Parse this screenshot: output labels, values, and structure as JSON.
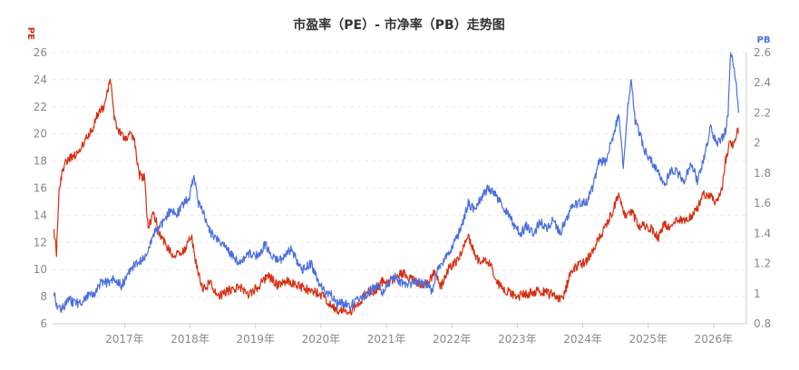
{
  "chart_data": {
    "type": "line",
    "title": "市盈率（PE）- 市净率（PB）走势图",
    "left_axis": {
      "label": "PE",
      "ylim": [
        6,
        26
      ],
      "ticks": [
        6,
        8,
        10,
        12,
        14,
        16,
        18,
        20,
        22,
        24,
        26
      ],
      "color": "#d62e12"
    },
    "right_axis": {
      "label": "PB",
      "ylim": [
        0.8,
        2.6
      ],
      "ticks": [
        "0.8",
        "1",
        "1.2",
        "1.4",
        "1.6",
        "1.8",
        "2",
        "2.2",
        "2.4",
        "2.6"
      ],
      "color": "#4a6ee0"
    },
    "x_ticks": [
      {
        "label": "2017年",
        "x": 2017.0
      },
      {
        "label": "2018年",
        "x": 2018.0
      },
      {
        "label": "2019年",
        "x": 2019.0
      },
      {
        "label": "2020年",
        "x": 2020.0
      },
      {
        "label": "2021年",
        "x": 2021.0
      },
      {
        "label": "2022年",
        "x": 2022.0
      },
      {
        "label": "2023年",
        "x": 2023.0
      },
      {
        "label": "2024年",
        "x": 2024.0
      },
      {
        "label": "2025年",
        "x": 2025.0
      },
      {
        "label": "2026年",
        "x": 2026.0
      }
    ],
    "xlim": [
      2015.9,
      2026.5
    ],
    "grid": true,
    "series": [
      {
        "name": "PE",
        "axis": "left",
        "color": "#d62e12",
        "points": [
          [
            2015.92,
            13.0
          ],
          [
            2015.96,
            11.2
          ],
          [
            2016.0,
            15.9
          ],
          [
            2016.06,
            17.5
          ],
          [
            2016.12,
            18.0
          ],
          [
            2016.2,
            18.3
          ],
          [
            2016.3,
            18.5
          ],
          [
            2016.4,
            19.5
          ],
          [
            2016.5,
            20.3
          ],
          [
            2016.6,
            21.6
          ],
          [
            2016.7,
            22.0
          ],
          [
            2016.78,
            24.2
          ],
          [
            2016.85,
            21.0
          ],
          [
            2016.92,
            20.2
          ],
          [
            2017.0,
            19.5
          ],
          [
            2017.08,
            20.0
          ],
          [
            2017.16,
            19.3
          ],
          [
            2017.22,
            17.0
          ],
          [
            2017.3,
            16.8
          ],
          [
            2017.36,
            13.0
          ],
          [
            2017.44,
            14.2
          ],
          [
            2017.55,
            12.5
          ],
          [
            2017.7,
            11.3
          ],
          [
            2017.85,
            11.0
          ],
          [
            2017.95,
            11.8
          ],
          [
            2018.02,
            12.5
          ],
          [
            2018.1,
            10.2
          ],
          [
            2018.2,
            8.5
          ],
          [
            2018.3,
            9.0
          ],
          [
            2018.45,
            8.0
          ],
          [
            2018.6,
            8.5
          ],
          [
            2018.75,
            8.7
          ],
          [
            2018.9,
            8.2
          ],
          [
            2019.05,
            8.8
          ],
          [
            2019.2,
            9.5
          ],
          [
            2019.35,
            8.8
          ],
          [
            2019.5,
            9.2
          ],
          [
            2019.65,
            8.8
          ],
          [
            2019.8,
            8.5
          ],
          [
            2019.95,
            8.3
          ],
          [
            2020.05,
            8.0
          ],
          [
            2020.15,
            7.4
          ],
          [
            2020.25,
            7.0
          ],
          [
            2020.35,
            7.1
          ],
          [
            2020.45,
            6.9
          ],
          [
            2020.55,
            7.4
          ],
          [
            2020.7,
            8.3
          ],
          [
            2020.85,
            8.5
          ],
          [
            2020.95,
            9.2
          ],
          [
            2021.1,
            9.2
          ],
          [
            2021.2,
            9.8
          ],
          [
            2021.3,
            9.6
          ],
          [
            2021.45,
            9.0
          ],
          [
            2021.6,
            8.9
          ],
          [
            2021.75,
            9.8
          ],
          [
            2021.82,
            8.6
          ],
          [
            2021.95,
            10.0
          ],
          [
            2022.05,
            10.5
          ],
          [
            2022.15,
            11.2
          ],
          [
            2022.25,
            12.6
          ],
          [
            2022.35,
            11.0
          ],
          [
            2022.45,
            10.5
          ],
          [
            2022.55,
            10.7
          ],
          [
            2022.7,
            9.0
          ],
          [
            2022.85,
            8.4
          ],
          [
            2023.0,
            8.0
          ],
          [
            2023.15,
            8.2
          ],
          [
            2023.3,
            8.4
          ],
          [
            2023.45,
            8.3
          ],
          [
            2023.6,
            8.0
          ],
          [
            2023.7,
            7.8
          ],
          [
            2023.8,
            9.6
          ],
          [
            2023.9,
            10.2
          ],
          [
            2024.05,
            10.6
          ],
          [
            2024.2,
            11.8
          ],
          [
            2024.35,
            13.2
          ],
          [
            2024.45,
            14.2
          ],
          [
            2024.55,
            15.6
          ],
          [
            2024.65,
            14.0
          ],
          [
            2024.75,
            14.3
          ],
          [
            2024.85,
            13.2
          ],
          [
            2024.95,
            13.2
          ],
          [
            2025.05,
            13.0
          ],
          [
            2025.15,
            12.3
          ],
          [
            2025.25,
            13.4
          ],
          [
            2025.35,
            13.0
          ],
          [
            2025.45,
            13.8
          ],
          [
            2025.55,
            13.6
          ],
          [
            2025.65,
            13.8
          ],
          [
            2025.75,
            14.5
          ],
          [
            2025.85,
            15.6
          ],
          [
            2025.95,
            15.3
          ],
          [
            2026.05,
            15.0
          ],
          [
            2026.12,
            15.7
          ],
          [
            2026.18,
            18.0
          ],
          [
            2026.24,
            19.3
          ],
          [
            2026.3,
            19.0
          ],
          [
            2026.36,
            20.3
          ],
          [
            2026.38,
            20.0
          ]
        ]
      },
      {
        "name": "PB",
        "axis": "right",
        "color": "#4a6ee0",
        "points": [
          [
            2015.92,
            1.0
          ],
          [
            2015.98,
            0.9
          ],
          [
            2016.05,
            0.9
          ],
          [
            2016.15,
            0.96
          ],
          [
            2016.25,
            0.93
          ],
          [
            2016.35,
            0.95
          ],
          [
            2016.45,
            1.0
          ],
          [
            2016.55,
            1.01
          ],
          [
            2016.65,
            1.08
          ],
          [
            2016.75,
            1.07
          ],
          [
            2016.85,
            1.1
          ],
          [
            2016.95,
            1.05
          ],
          [
            2017.05,
            1.12
          ],
          [
            2017.15,
            1.2
          ],
          [
            2017.25,
            1.22
          ],
          [
            2017.35,
            1.27
          ],
          [
            2017.45,
            1.4
          ],
          [
            2017.55,
            1.45
          ],
          [
            2017.7,
            1.55
          ],
          [
            2017.8,
            1.53
          ],
          [
            2017.9,
            1.6
          ],
          [
            2018.0,
            1.65
          ],
          [
            2018.06,
            1.8
          ],
          [
            2018.12,
            1.6
          ],
          [
            2018.22,
            1.52
          ],
          [
            2018.32,
            1.4
          ],
          [
            2018.45,
            1.35
          ],
          [
            2018.6,
            1.28
          ],
          [
            2018.75,
            1.2
          ],
          [
            2018.9,
            1.27
          ],
          [
            2019.05,
            1.25
          ],
          [
            2019.15,
            1.33
          ],
          [
            2019.25,
            1.25
          ],
          [
            2019.4,
            1.22
          ],
          [
            2019.55,
            1.3
          ],
          [
            2019.7,
            1.15
          ],
          [
            2019.85,
            1.2
          ],
          [
            2019.95,
            1.08
          ],
          [
            2020.05,
            1.02
          ],
          [
            2020.15,
            1.0
          ],
          [
            2020.25,
            0.93
          ],
          [
            2020.35,
            0.94
          ],
          [
            2020.45,
            0.92
          ],
          [
            2020.55,
            0.96
          ],
          [
            2020.7,
            1.0
          ],
          [
            2020.85,
            1.05
          ],
          [
            2020.95,
            1.0
          ],
          [
            2021.1,
            1.12
          ],
          [
            2021.2,
            1.08
          ],
          [
            2021.3,
            1.05
          ],
          [
            2021.45,
            1.08
          ],
          [
            2021.6,
            1.06
          ],
          [
            2021.7,
            1.02
          ],
          [
            2021.78,
            1.15
          ],
          [
            2021.84,
            1.2
          ],
          [
            2021.95,
            1.27
          ],
          [
            2022.05,
            1.34
          ],
          [
            2022.15,
            1.45
          ],
          [
            2022.25,
            1.6
          ],
          [
            2022.35,
            1.55
          ],
          [
            2022.45,
            1.64
          ],
          [
            2022.55,
            1.7
          ],
          [
            2022.65,
            1.66
          ],
          [
            2022.75,
            1.6
          ],
          [
            2022.85,
            1.53
          ],
          [
            2022.95,
            1.45
          ],
          [
            2023.05,
            1.4
          ],
          [
            2023.15,
            1.45
          ],
          [
            2023.25,
            1.4
          ],
          [
            2023.35,
            1.48
          ],
          [
            2023.45,
            1.43
          ],
          [
            2023.55,
            1.5
          ],
          [
            2023.65,
            1.4
          ],
          [
            2023.75,
            1.5
          ],
          [
            2023.85,
            1.58
          ],
          [
            2023.95,
            1.6
          ],
          [
            2024.05,
            1.6
          ],
          [
            2024.15,
            1.7
          ],
          [
            2024.25,
            1.88
          ],
          [
            2024.35,
            1.88
          ],
          [
            2024.45,
            2.02
          ],
          [
            2024.55,
            2.2
          ],
          [
            2024.62,
            1.85
          ],
          [
            2024.68,
            2.2
          ],
          [
            2024.74,
            2.44
          ],
          [
            2024.8,
            2.15
          ],
          [
            2024.88,
            2.05
          ],
          [
            2024.95,
            1.95
          ],
          [
            2025.05,
            1.88
          ],
          [
            2025.15,
            1.8
          ],
          [
            2025.25,
            1.72
          ],
          [
            2025.35,
            1.82
          ],
          [
            2025.45,
            1.8
          ],
          [
            2025.55,
            1.75
          ],
          [
            2025.65,
            1.87
          ],
          [
            2025.75,
            1.75
          ],
          [
            2025.85,
            1.9
          ],
          [
            2025.95,
            2.1
          ],
          [
            2026.05,
            2.0
          ],
          [
            2026.12,
            2.02
          ],
          [
            2026.18,
            2.08
          ],
          [
            2026.22,
            2.2
          ],
          [
            2026.26,
            2.6
          ],
          [
            2026.3,
            2.52
          ],
          [
            2026.34,
            2.42
          ],
          [
            2026.38,
            2.2
          ]
        ]
      }
    ]
  }
}
